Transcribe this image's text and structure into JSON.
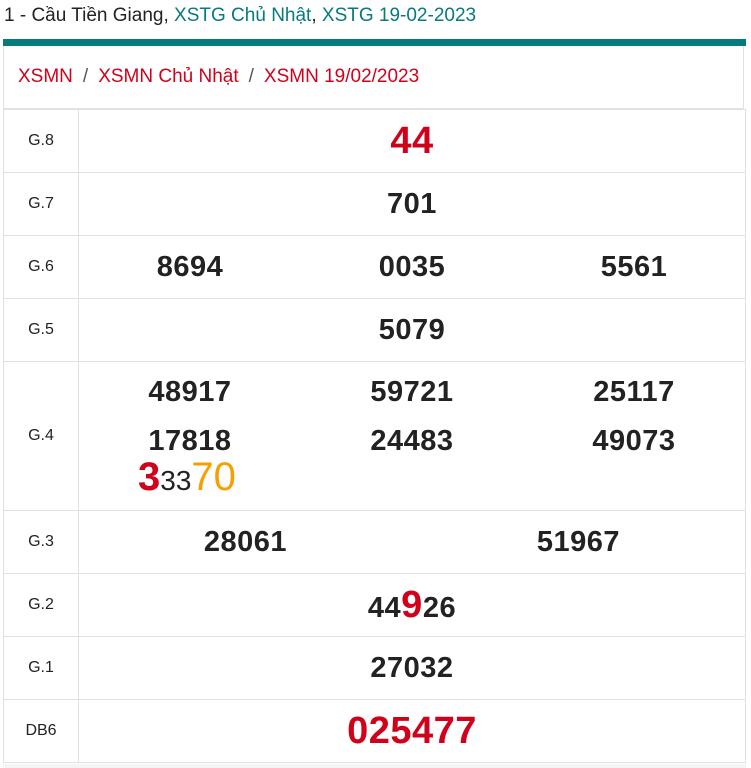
{
  "header": {
    "prefix": "1 - Cầu Tiền Giang, ",
    "link1": "XSTG Chủ Nhật",
    "mid": ", ",
    "link2": "XSTG 19-02-2023",
    "accent_color": "#077a7c"
  },
  "breadcrumb": {
    "items": [
      "XSMN",
      "XSMN Chủ Nhật",
      "XSMN 19/02/2023"
    ],
    "separator": "/",
    "color": "#d0021b"
  },
  "results": {
    "g8": {
      "label": "G.8",
      "value": "44"
    },
    "g7": {
      "label": "G.7",
      "value": "701"
    },
    "g6": {
      "label": "G.6",
      "values": [
        "8694",
        "0035",
        "5561"
      ]
    },
    "g5": {
      "label": "G.5",
      "value": "5079"
    },
    "g4": {
      "label": "G.4",
      "values": [
        "48917",
        "59721",
        "25117",
        "17818",
        "24483",
        "49073"
      ],
      "highlight_parts": [
        "3",
        "33",
        "70"
      ]
    },
    "g3": {
      "label": "G.3",
      "values": [
        "28061",
        "51967"
      ]
    },
    "g2": {
      "label": "G.2",
      "parts": [
        "44",
        "9",
        "26"
      ]
    },
    "g1": {
      "label": "G.1",
      "value": "27032"
    },
    "db": {
      "label": "DB6",
      "value": "025477"
    }
  }
}
